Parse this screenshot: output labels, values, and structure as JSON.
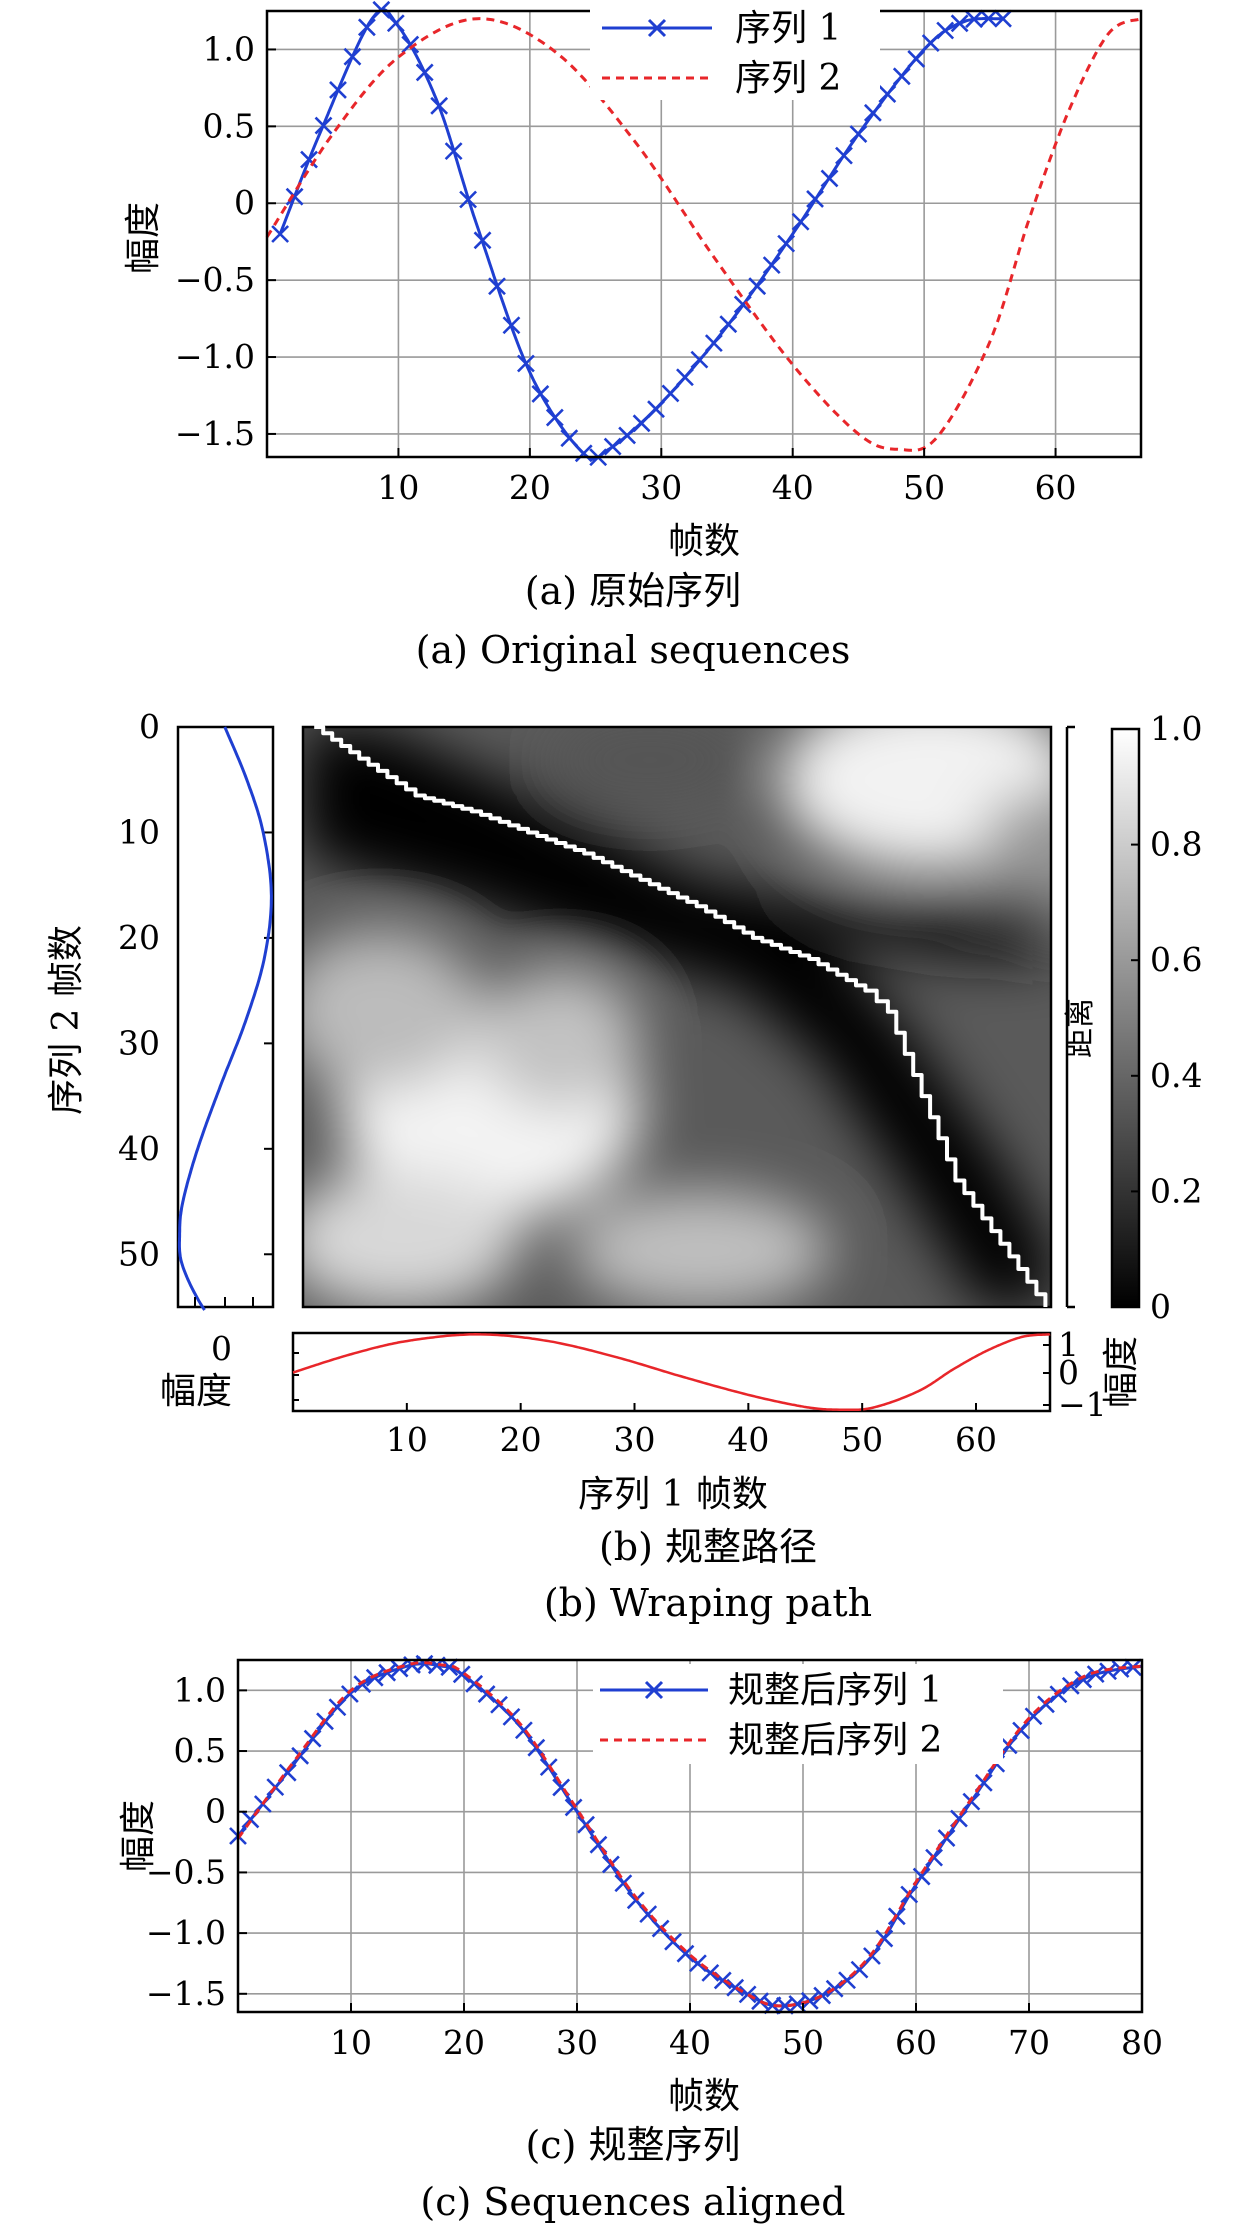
{
  "colors": {
    "series1": "#1f3fd1",
    "series2": "#e8262a",
    "grid": "#9a9a9a"
  },
  "chart_data": [
    {
      "type": "line",
      "panel": "a",
      "xlabel": "帧数",
      "ylabel": "幅度",
      "caption_cn": "(a) 原始序列",
      "caption_en": "(a) Original sequences",
      "xlim": [
        0,
        66.5
      ],
      "ylim": [
        -1.65,
        1.25
      ],
      "xticks": [
        "10",
        "20",
        "30",
        "40",
        "50",
        "60"
      ],
      "yticks": [
        "1.0",
        "0.5",
        "0",
        "−0.5",
        "−1.0",
        "−1.5"
      ],
      "grid": true,
      "legend_position": "top-right",
      "series": [
        {
          "name": "序列 1",
          "style": "solid-x-markers",
          "x": [
            1,
            4,
            8,
            10,
            13,
            16,
            20,
            24,
            26,
            30,
            35,
            40,
            45,
            50,
            53,
            56
          ],
          "y": [
            -0.2,
            0.45,
            1.2,
            1.15,
            0.65,
            -0.15,
            -1.1,
            -1.62,
            -1.6,
            -1.3,
            -0.8,
            -0.2,
            0.45,
            1.0,
            1.18,
            1.2
          ]
        },
        {
          "name": "序列 2",
          "style": "dashed",
          "x": [
            0,
            5,
            10,
            16,
            22,
            28,
            34,
            40,
            45,
            48,
            51,
            55,
            58,
            61,
            64,
            66.5
          ],
          "y": [
            -0.22,
            0.45,
            0.95,
            1.2,
            0.98,
            0.4,
            -0.35,
            -1.05,
            -1.5,
            -1.6,
            -1.52,
            -0.9,
            -0.1,
            0.6,
            1.1,
            1.2
          ]
        }
      ]
    },
    {
      "type": "heatmap",
      "panel": "b",
      "xlabel": "序列 1 帧数",
      "ylabel": "序列 2 帧数",
      "colorbar_label": "距离",
      "colorbar_ticks": [
        "1.0",
        "0.8",
        "0.6",
        "0.4",
        "0.2",
        "0"
      ],
      "side_amp_label": "幅度",
      "caption_cn": "(b) 规整路径",
      "caption_en": "(b) Wraping path",
      "xlim": [
        0,
        66.5
      ],
      "ylim": [
        0,
        55
      ],
      "xticks": [
        "10",
        "20",
        "30",
        "40",
        "50",
        "60"
      ],
      "yticks": [
        "0",
        "10",
        "20",
        "30",
        "40",
        "50"
      ],
      "left_amp_ticks": [
        "0"
      ],
      "bottom_amp_ticks": [
        "1",
        "0",
        "−1"
      ],
      "path_x": [
        1,
        5,
        10,
        15,
        20,
        25,
        30,
        35,
        40,
        45,
        50,
        52,
        55,
        58,
        62,
        66
      ],
      "path_y": [
        0,
        3,
        6.5,
        8,
        10,
        12,
        14.5,
        17,
        20,
        22,
        25,
        27,
        35,
        43,
        49,
        55
      ]
    },
    {
      "type": "line",
      "panel": "c",
      "xlabel": "帧数",
      "ylabel": "幅度",
      "caption_cn": "(c) 规整序列",
      "caption_en": "(c) Sequences aligned",
      "xlim": [
        0,
        80
      ],
      "ylim": [
        -1.65,
        1.25
      ],
      "xticks": [
        "10",
        "20",
        "30",
        "40",
        "50",
        "60",
        "70",
        "80"
      ],
      "yticks": [
        "1.0",
        "0.5",
        "0",
        "−0.5",
        "−1.0",
        "−1.5"
      ],
      "grid": true,
      "legend_position": "top-right",
      "series": [
        {
          "name": "规整后序列 1",
          "style": "solid-x-markers",
          "x": [
            0,
            5,
            10,
            15,
            18,
            20,
            25,
            30,
            35,
            40,
            45,
            48,
            52,
            56,
            60,
            65,
            70,
            75,
            80
          ],
          "y": [
            -0.2,
            0.4,
            0.98,
            1.2,
            1.2,
            1.12,
            0.7,
            0.0,
            -0.7,
            -1.2,
            -1.5,
            -1.6,
            -1.5,
            -1.2,
            -0.6,
            0.1,
            0.75,
            1.1,
            1.2
          ]
        },
        {
          "name": "规整后序列 2",
          "style": "dashed",
          "x": [
            0,
            5,
            10,
            15,
            18,
            20,
            25,
            30,
            35,
            40,
            45,
            48,
            52,
            56,
            60,
            65,
            70,
            75,
            80
          ],
          "y": [
            -0.22,
            0.42,
            1.0,
            1.21,
            1.21,
            1.14,
            0.72,
            0.02,
            -0.68,
            -1.18,
            -1.5,
            -1.6,
            -1.5,
            -1.18,
            -0.58,
            0.12,
            0.77,
            1.12,
            1.2
          ]
        }
      ]
    }
  ]
}
